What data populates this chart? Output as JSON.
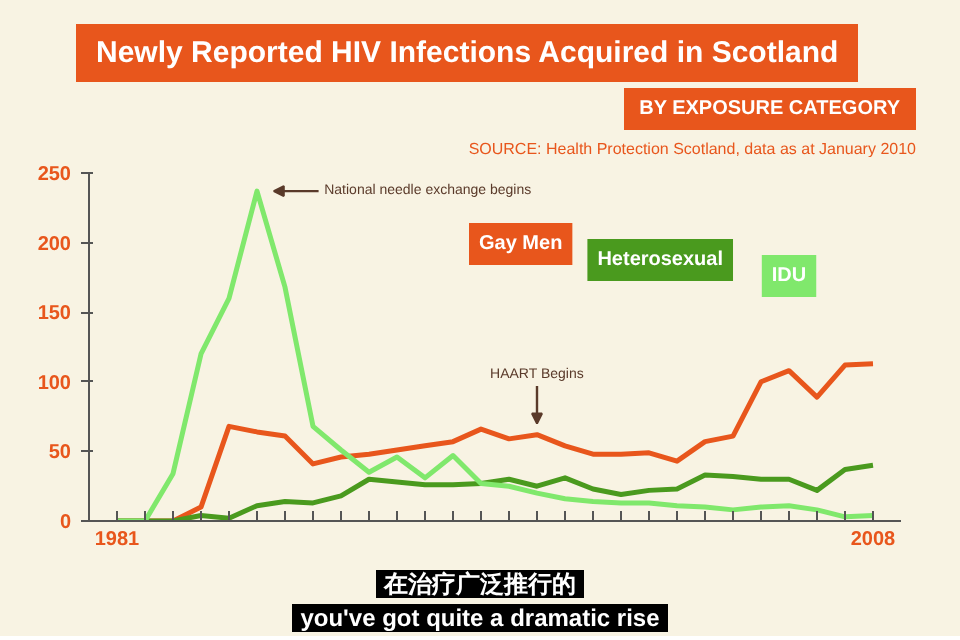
{
  "chart_data": {
    "type": "line",
    "title": "Newly Reported HIV Infections Acquired in Scotland",
    "subtitle": "BY EXPOSURE CATEGORY",
    "x": [
      1981,
      1982,
      1983,
      1984,
      1985,
      1986,
      1987,
      1988,
      1989,
      1990,
      1991,
      1992,
      1993,
      1994,
      1995,
      1996,
      1997,
      1998,
      1999,
      2000,
      2001,
      2002,
      2003,
      2004,
      2005,
      2006,
      2007,
      2008
    ],
    "series": [
      {
        "name": "Gay Men",
        "color": "#e8561c",
        "values": [
          0,
          0,
          0,
          10,
          68,
          64,
          61,
          41,
          46,
          48,
          51,
          54,
          57,
          66,
          59,
          62,
          54,
          48,
          48,
          49,
          43,
          57,
          61,
          100,
          108,
          89,
          112,
          113
        ]
      },
      {
        "name": "Heterosexual",
        "color": "#4a9a1e",
        "values": [
          0,
          0,
          0,
          4,
          2,
          11,
          14,
          13,
          18,
          30,
          28,
          26,
          26,
          27,
          30,
          25,
          31,
          23,
          19,
          22,
          23,
          33,
          32,
          30,
          30,
          22,
          37,
          40
        ]
      },
      {
        "name": "IDU",
        "color": "#80e86c",
        "values": [
          0,
          0,
          34,
          120,
          160,
          237,
          168,
          68,
          51,
          35,
          46,
          31,
          47,
          27,
          25,
          20,
          16,
          14,
          13,
          13,
          11,
          10,
          8,
          10,
          11,
          8,
          3,
          4
        ]
      }
    ],
    "xlim": [
      1980,
      2009
    ],
    "xticks": [
      1981,
      {
        "value": 1982,
        "label": null
      },
      {
        "value": 1983,
        "label": null
      },
      {
        "value": 1984,
        "label": null
      },
      {
        "value": 1985,
        "label": null
      },
      {
        "value": 1986,
        "label": null
      },
      {
        "value": 1987,
        "label": null
      },
      {
        "value": 1988,
        "label": null
      },
      {
        "value": 1989,
        "label": null
      },
      {
        "value": 1990,
        "label": null
      },
      {
        "value": 1991,
        "label": null
      },
      {
        "value": 1992,
        "label": null
      },
      {
        "value": 1993,
        "label": null
      },
      {
        "value": 1994,
        "label": null
      },
      {
        "value": 1995,
        "label": null
      },
      {
        "value": 1996,
        "label": null
      },
      {
        "value": 1997,
        "label": null
      },
      {
        "value": 1998,
        "label": null
      },
      {
        "value": 1999,
        "label": null
      },
      {
        "value": 2000,
        "label": null
      },
      {
        "value": 2001,
        "label": null
      },
      {
        "value": 2002,
        "label": null
      },
      {
        "value": 2003,
        "label": null
      },
      {
        "value": 2004,
        "label": null
      },
      {
        "value": 2005,
        "label": null
      },
      {
        "value": 2006,
        "label": null
      },
      {
        "value": 2007,
        "label": null
      },
      2008
    ],
    "ylim": [
      0,
      250
    ],
    "yticks": [
      0,
      50,
      100,
      150,
      200,
      250
    ],
    "grid": false,
    "legend": "top right",
    "marker": "none",
    "line_style": "solid",
    "annotations": [
      {
        "text": "National needle exchange begins",
        "x": 1986,
        "y": 237
      },
      {
        "text": "HAART Begins",
        "x": 1996,
        "y": 62
      },
      "SOURCE: Health Protection Scotland, data as at January 2010",
      "在治疗广泛推行的",
      "you've got quite a dramatic rise"
    ]
  }
}
